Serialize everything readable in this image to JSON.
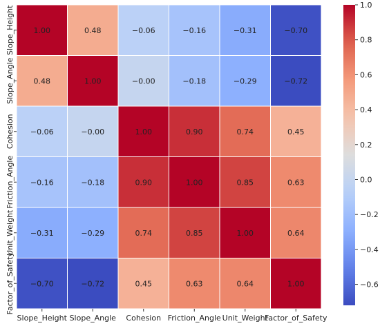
{
  "chart_data": {
    "type": "heatmap",
    "title": "",
    "xlabel": "",
    "ylabel": "",
    "x_labels": [
      "Slope_Height",
      "Slope_Angle",
      "Cohesion",
      "Friction_Angle",
      "Unit_Weight",
      "Factor_of_Safety"
    ],
    "y_labels": [
      "Slope_Height",
      "Slope_Angle",
      "Cohesion",
      "Friction_Angle",
      "Unit_Weight",
      "Factor_of_Safety"
    ],
    "values": [
      [
        1.0,
        0.48,
        -0.06,
        -0.16,
        -0.31,
        -0.7
      ],
      [
        0.48,
        1.0,
        -0.0,
        -0.18,
        -0.29,
        -0.72
      ],
      [
        -0.06,
        -0.0,
        1.0,
        0.9,
        0.74,
        0.45
      ],
      [
        -0.16,
        -0.18,
        0.9,
        1.0,
        0.85,
        0.63
      ],
      [
        -0.31,
        -0.29,
        0.74,
        0.85,
        1.0,
        0.64
      ],
      [
        -0.7,
        -0.72,
        0.45,
        0.63,
        0.64,
        1.0
      ]
    ],
    "value_labels": [
      [
        "1.00",
        "0.48",
        "−0.06",
        "−0.16",
        "−0.31",
        "−0.70"
      ],
      [
        "0.48",
        "1.00",
        "−0.00",
        "−0.18",
        "−0.29",
        "−0.72"
      ],
      [
        "−0.06",
        "−0.00",
        "1.00",
        "0.90",
        "0.74",
        "0.45"
      ],
      [
        "−0.16",
        "−0.18",
        "0.90",
        "1.00",
        "0.85",
        "0.63"
      ],
      [
        "−0.31",
        "−0.29",
        "0.74",
        "0.85",
        "1.00",
        "0.64"
      ],
      [
        "−0.70",
        "−0.72",
        "0.45",
        "0.63",
        "0.64",
        "1.00"
      ]
    ],
    "colormap": "coolwarm",
    "vmin": -0.72,
    "vmax": 1.0,
    "annotated": true,
    "grid": false,
    "colorbar": {
      "placement": "right",
      "ticks": [
        1.0,
        0.8,
        0.6,
        0.4,
        0.2,
        0.0,
        -0.2,
        -0.4,
        -0.6
      ],
      "tick_labels": [
        "1.0",
        "0.8",
        "0.6",
        "0.4",
        "0.2",
        "0.0",
        "−0.2",
        "−0.4",
        "−0.6"
      ]
    }
  }
}
